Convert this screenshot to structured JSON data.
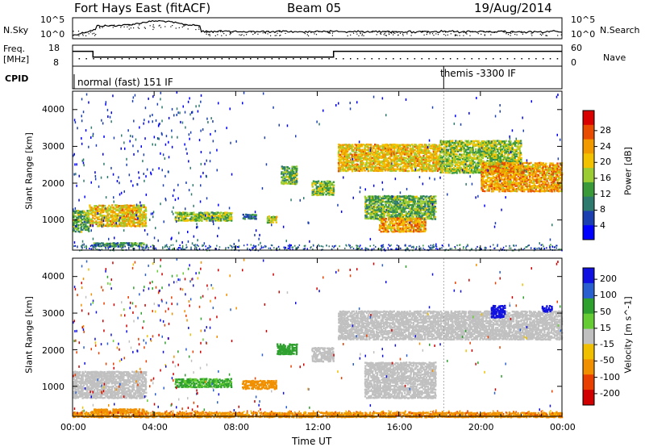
{
  "header": {
    "station": "Fort Hays East (fitACF)",
    "beam": "Beam 05",
    "date": "19/Aug/2014"
  },
  "noise_panel": {
    "left_label": "N.Sky",
    "right_label": "N.Search",
    "left_ticks": [
      "10^5",
      "10^0"
    ],
    "right_ticks": [
      "10^5",
      "10^0"
    ]
  },
  "freq_panel": {
    "left_label_line1": "Freq.",
    "left_label_line2": "[MHz]",
    "left_ticks": [
      "18",
      "8"
    ],
    "right_ticks": [
      "60",
      "0"
    ],
    "right_label": "Nave"
  },
  "cpid_panel": {
    "label": "CPID",
    "modes": [
      "normal (fast) 151 IF",
      "themis -3300 IF"
    ]
  },
  "power_panel": {
    "ylabel": "Slant Range [km]",
    "yticks": [
      "4000",
      "3000",
      "2000",
      "1000"
    ],
    "colorbar_label": "Power [dB]",
    "colorbar_ticks": [
      "28",
      "24",
      "20",
      "16",
      "12",
      "8",
      "4"
    ],
    "colors": [
      "#0000ff",
      "#1c3fb0",
      "#2f7a6e",
      "#3a9a3a",
      "#9bcc33",
      "#f2c200",
      "#f09a00",
      "#e84c00",
      "#d90000"
    ]
  },
  "velocity_panel": {
    "ylabel": "Slant Range [km]",
    "yticks": [
      "4000",
      "3000",
      "2000",
      "1000"
    ],
    "colorbar_label": "Velocity [m s^-1]",
    "colorbar_ticks": [
      "200",
      "100",
      "50",
      "15",
      "-15",
      "-50",
      "-100",
      "-200"
    ],
    "colors": [
      "#1010e0",
      "#2a5fd0",
      "#2ea02e",
      "#66cc33",
      "#c0c0c0",
      "#f0c000",
      "#f09000",
      "#e84000",
      "#d00000"
    ]
  },
  "time_axis": {
    "ticks": [
      "00:00",
      "04:00",
      "08:00",
      "12:00",
      "16:00",
      "20:00",
      "00:00"
    ],
    "label": "Time UT"
  },
  "chart_data": {
    "type": "heatmap",
    "x_unit": "UT hours",
    "xlim": [
      0,
      24
    ],
    "ylim_km": [
      180,
      4500
    ],
    "cpid_switch_hour": 18.2,
    "freq_trace": {
      "x": [
        0,
        1.0,
        1.0,
        12.8,
        12.8,
        24
      ],
      "mhz": [
        14,
        14,
        11,
        11,
        14,
        14
      ]
    },
    "power_regions": [
      {
        "t0": 0.0,
        "t1": 0.8,
        "r0": 700,
        "r1": 1300,
        "db": 14
      },
      {
        "t0": 0.8,
        "t1": 3.6,
        "r0": 850,
        "r1": 1450,
        "db": 20
      },
      {
        "t0": 1.0,
        "t1": 3.5,
        "r0": 300,
        "r1": 420,
        "db": 12
      },
      {
        "t0": 5.0,
        "t1": 7.8,
        "r0": 1000,
        "r1": 1250,
        "db": 16
      },
      {
        "t0": 8.3,
        "t1": 9.0,
        "r0": 1050,
        "r1": 1200,
        "db": 10
      },
      {
        "t0": 9.5,
        "t1": 10.0,
        "r0": 950,
        "r1": 1150,
        "db": 18
      },
      {
        "t0": 10.2,
        "t1": 11.0,
        "r0": 2000,
        "r1": 2500,
        "db": 14
      },
      {
        "t0": 11.7,
        "t1": 12.8,
        "r0": 1700,
        "r1": 2100,
        "db": 16
      },
      {
        "t0": 13.0,
        "t1": 18.0,
        "r0": 2350,
        "r1": 3100,
        "db": 20
      },
      {
        "t0": 14.3,
        "t1": 17.8,
        "r0": 1050,
        "r1": 1700,
        "db": 14
      },
      {
        "t0": 15.0,
        "t1": 17.3,
        "r0": 700,
        "r1": 1100,
        "db": 22
      },
      {
        "t0": 18.0,
        "t1": 22.0,
        "r0": 2300,
        "r1": 3200,
        "db": 16
      },
      {
        "t0": 20.0,
        "t1": 24.0,
        "r0": 1800,
        "r1": 2600,
        "db": 22
      }
    ],
    "velocity_regions": [
      {
        "t0": 0.0,
        "t1": 3.6,
        "r0": 700,
        "r1": 1450,
        "v": 0
      },
      {
        "t0": 1.0,
        "t1": 3.5,
        "r0": 300,
        "r1": 420,
        "v": -50
      },
      {
        "t0": 5.0,
        "t1": 7.8,
        "r0": 1000,
        "r1": 1250,
        "v": 40
      },
      {
        "t0": 8.3,
        "t1": 10.0,
        "r0": 950,
        "r1": 1200,
        "v": -60
      },
      {
        "t0": 11.7,
        "t1": 12.8,
        "r0": 1700,
        "r1": 2100,
        "v": 0
      },
      {
        "t0": 10.0,
        "t1": 11.0,
        "r0": 1900,
        "r1": 2200,
        "v": 60
      },
      {
        "t0": 13.0,
        "t1": 24.0,
        "r0": 2300,
        "r1": 3100,
        "v": 0
      },
      {
        "t0": 14.3,
        "t1": 17.8,
        "r0": 700,
        "r1": 1700,
        "v": 0
      },
      {
        "t0": 20.5,
        "t1": 21.2,
        "r0": 2900,
        "r1": 3250,
        "v": 200
      },
      {
        "t0": 23.0,
        "t1": 23.5,
        "r0": 3050,
        "r1": 3250,
        "v": 200
      },
      {
        "t0": 0.0,
        "t1": 24.0,
        "r0": 180,
        "r1": 330,
        "v": -60
      }
    ]
  }
}
